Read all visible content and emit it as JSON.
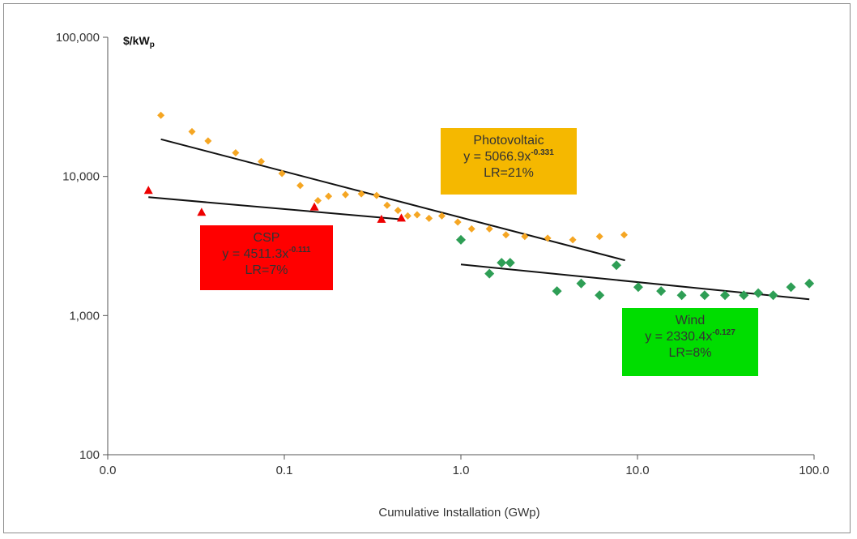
{
  "chart_data": {
    "type": "scatter",
    "x_scale": "log",
    "y_scale": "log",
    "xlim": [
      0.01,
      100
    ],
    "ylim": [
      100,
      100000
    ],
    "grid": false,
    "xlabel": "Cumulative Installation (GWp)",
    "ylabel": "$/kW",
    "ylabel_subscript": "p",
    "x_ticks": [
      0.01,
      0.1,
      1,
      10,
      100
    ],
    "x_tick_labels": [
      "0.0",
      "0.1",
      "1.0",
      "10.0",
      "100.0"
    ],
    "y_ticks": [
      100,
      1000,
      10000,
      100000
    ],
    "y_tick_labels": [
      "100",
      "1,000",
      "10,000",
      "100,000"
    ],
    "series": [
      {
        "name": "Photovoltaic",
        "marker": "diamond",
        "color": "#f5a623",
        "x": [
          0.02,
          0.03,
          0.037,
          0.053,
          0.074,
          0.097,
          0.123,
          0.155,
          0.178,
          0.222,
          0.273,
          0.333,
          0.382,
          0.44,
          0.5,
          0.565,
          0.66,
          0.78,
          0.96,
          1.15,
          1.45,
          1.8,
          2.3,
          3.1,
          4.3,
          6.1,
          8.4
        ],
        "y": [
          27500,
          21000,
          18000,
          14800,
          12800,
          10500,
          8600,
          6700,
          7200,
          7400,
          7500,
          7300,
          6200,
          5700,
          5200,
          5300,
          5000,
          5200,
          4700,
          4200,
          4200,
          3800,
          3700,
          3600,
          3500,
          3700,
          3800
        ],
        "trendline": {
          "equation": "y = 5066.9x",
          "exponent": "-0.331",
          "lr": "LR=21%",
          "coef": 5066.9,
          "power": -0.331,
          "x_range": [
            0.02,
            8.5
          ]
        }
      },
      {
        "name": "CSP",
        "marker": "triangle",
        "color": "#ee0000",
        "x": [
          0.017,
          0.034,
          0.148,
          0.355,
          0.46
        ],
        "y": [
          7900,
          5500,
          6000,
          4900,
          5000
        ],
        "trendline": {
          "equation": "y = 4511.3x",
          "exponent": "-0.111",
          "lr": "LR=7%",
          "coef": 4511.3,
          "power": -0.111,
          "x_range": [
            0.017,
            0.46
          ]
        }
      },
      {
        "name": "Wind",
        "marker": "diamond",
        "color": "#2e9e55",
        "x": [
          1.0,
          1.45,
          1.7,
          1.9,
          3.5,
          4.8,
          6.1,
          7.6,
          10.1,
          13.6,
          17.8,
          24.0,
          31.3,
          40.0,
          48.3,
          58.7,
          74.0,
          94.0
        ],
        "y": [
          3500,
          2000,
          2400,
          2400,
          1500,
          1700,
          1400,
          2300,
          1600,
          1500,
          1400,
          1400,
          1400,
          1400,
          1450,
          1400,
          1600,
          1700
        ],
        "trendline": {
          "equation": "y = 2330.4x",
          "exponent": "-0.127",
          "lr": "LR=8%",
          "coef": 2330.4,
          "power": -0.127,
          "x_range": [
            1.0,
            94.0
          ]
        }
      }
    ],
    "annotations": [
      {
        "series": "Photovoltaic",
        "title": "Photovoltaic",
        "equation": "y = 5066.9x",
        "exponent": "-0.331",
        "lr": "LR=21%",
        "background": "#f5b800"
      },
      {
        "series": "CSP",
        "title": "CSP",
        "equation": "y = 4511.3x",
        "exponent": "-0.111",
        "lr": "LR=7%",
        "background": "#ff0000"
      },
      {
        "series": "Wind",
        "title": "Wind",
        "equation": "y = 2330.4x",
        "exponent": "-0.127",
        "lr": "LR=8%",
        "background": "#00dd00"
      }
    ]
  }
}
